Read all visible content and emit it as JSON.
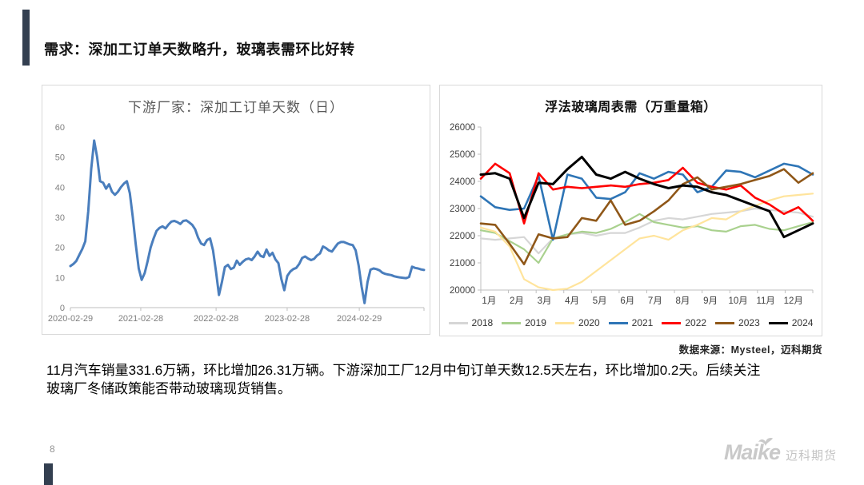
{
  "slide": {
    "title": "需求：深加工订单天数略升，玻璃表需环比好转",
    "page_number": "8",
    "source_note": "数据来源：Mysteel，迈科期货",
    "body_lines": [
      "11月汽车销量331.6万辆，环比增加26.31万辆。下游深加工厂12月中旬订单天数12.5天左右，环比增加0.2天。后续关注",
      "玻璃厂冬储政策能否带动玻璃现货销售。"
    ],
    "logo_brand": "Maike",
    "logo_cn": "迈科期货",
    "accent_color": "#333F50"
  },
  "chart_data": [
    {
      "type": "line",
      "title": "下游厂家：深加工订单天数（日）",
      "ylabel": "",
      "xlabel": "",
      "ylim": [
        0,
        60
      ],
      "yticks": [
        0,
        10,
        20,
        30,
        40,
        50,
        60
      ],
      "grid": false,
      "legend": false,
      "line_color": "#4A7EBD",
      "line_width": 3,
      "xticks": {
        "labels": [
          "2020-02-29",
          "2021-02-28",
          "2022-02-28",
          "2023-02-28",
          "2024-02-29"
        ],
        "fractions": [
          0.0,
          0.199,
          0.412,
          0.613,
          0.817
        ]
      },
      "values": [
        13.8,
        14.5,
        15.5,
        17.5,
        19.5,
        22,
        32,
        46,
        55.5,
        50,
        42,
        41.5,
        39.5,
        41,
        38.5,
        37.5,
        38.5,
        40,
        41.2,
        42,
        38,
        30,
        21,
        13,
        9.2,
        11.5,
        15.5,
        20,
        23,
        25.5,
        26.5,
        27,
        26.3,
        27.6,
        28.6,
        28.8,
        28.4,
        27.8,
        28.8,
        29,
        28.3,
        27.5,
        26,
        23.2,
        21.3,
        20.8,
        22.5,
        23,
        19,
        12,
        4.2,
        8.5,
        13.5,
        14.2,
        12.8,
        13.3,
        15.6,
        14.2,
        15.2,
        16,
        16.3,
        15.8,
        17,
        18.6,
        17.2,
        16.8,
        19.3,
        17.2,
        18.2,
        16,
        14.8,
        9.5,
        5.8,
        10.5,
        12,
        12.8,
        13.2,
        14.5,
        16.5,
        17,
        16.3,
        15.8,
        16.2,
        17.3,
        18,
        20.3,
        19.8,
        19,
        18.6,
        20,
        21.3,
        21.8,
        21.8,
        21.4,
        21,
        20.8,
        19,
        14,
        7,
        1.5,
        8.5,
        12.6,
        13,
        12.8,
        12.4,
        11.6,
        11.2,
        11,
        10.8,
        10.4,
        10.2,
        10,
        9.9,
        9.8,
        10.2,
        13.6,
        13.2,
        13,
        12.7,
        12.5
      ]
    },
    {
      "type": "line",
      "title": "浮法玻璃周表需（万重量箱）",
      "ylabel": "",
      "xlabel": "",
      "ylim": [
        20000,
        26000
      ],
      "yticks": [
        20000,
        21000,
        22000,
        23000,
        24000,
        25000,
        26000
      ],
      "grid": false,
      "legend_position": "bottom",
      "categories": [
        "1月",
        "2月",
        "3月",
        "4月",
        "5月",
        "6月",
        "7月",
        "8月",
        "9月",
        "10月",
        "11月",
        "12月"
      ],
      "series": [
        {
          "name": "2018",
          "color": "#D6D6D6",
          "width": 2.2,
          "values": [
            21900,
            21850,
            21900,
            21950,
            21350,
            21900,
            22050,
            22100,
            22000,
            22100,
            22100,
            22300,
            22550,
            22650,
            22600,
            22700,
            22800,
            22850,
            22900,
            23000,
            22950,
            22900,
            22850,
            22700
          ]
        },
        {
          "name": "2019",
          "color": "#A9D18E",
          "width": 2.2,
          "values": [
            22200,
            22100,
            21800,
            21500,
            21000,
            21900,
            22050,
            22150,
            22100,
            22250,
            22500,
            22800,
            22500,
            22400,
            22300,
            22350,
            22200,
            22150,
            22350,
            22400,
            22250,
            22200,
            22350,
            22500
          ]
        },
        {
          "name": "2020",
          "color": "#FFE49C",
          "width": 2.2,
          "values": [
            22300,
            22150,
            21600,
            20400,
            20100,
            20000,
            20050,
            20300,
            20700,
            21100,
            21500,
            21900,
            22000,
            21850,
            22200,
            22400,
            22650,
            22600,
            22900,
            23100,
            23300,
            23450,
            23500,
            23550
          ]
        },
        {
          "name": "2021",
          "color": "#2E75B6",
          "width": 2.6,
          "values": [
            23450,
            23050,
            22950,
            23000,
            24200,
            21850,
            24250,
            24100,
            23400,
            23350,
            23600,
            24300,
            24100,
            24350,
            24250,
            23600,
            23800,
            24400,
            24350,
            24150,
            24400,
            24650,
            24550,
            24250
          ]
        },
        {
          "name": "2022",
          "color": "#FF0000",
          "width": 2.6,
          "values": [
            24100,
            24650,
            24300,
            22450,
            24300,
            23700,
            23800,
            23750,
            23800,
            23850,
            23800,
            23900,
            23950,
            24050,
            24500,
            23950,
            23800,
            23700,
            23850,
            23400,
            23150,
            22800,
            23050,
            22550
          ]
        },
        {
          "name": "2023",
          "color": "#8F5718",
          "width": 2.6,
          "values": [
            22450,
            22400,
            21700,
            20950,
            22050,
            21900,
            21950,
            22650,
            22550,
            23300,
            22400,
            22550,
            22900,
            23300,
            23900,
            24150,
            23700,
            23800,
            23900,
            24050,
            24200,
            24450,
            23950,
            24300
          ]
        },
        {
          "name": "2024",
          "color": "#000000",
          "width": 3,
          "values": [
            24250,
            24300,
            24100,
            22650,
            23950,
            23900,
            24450,
            24900,
            24250,
            24100,
            24350,
            24100,
            23900,
            23750,
            23850,
            23800,
            23600,
            23500,
            23300,
            23100,
            22900,
            21950,
            22200,
            22450
          ]
        }
      ]
    }
  ]
}
